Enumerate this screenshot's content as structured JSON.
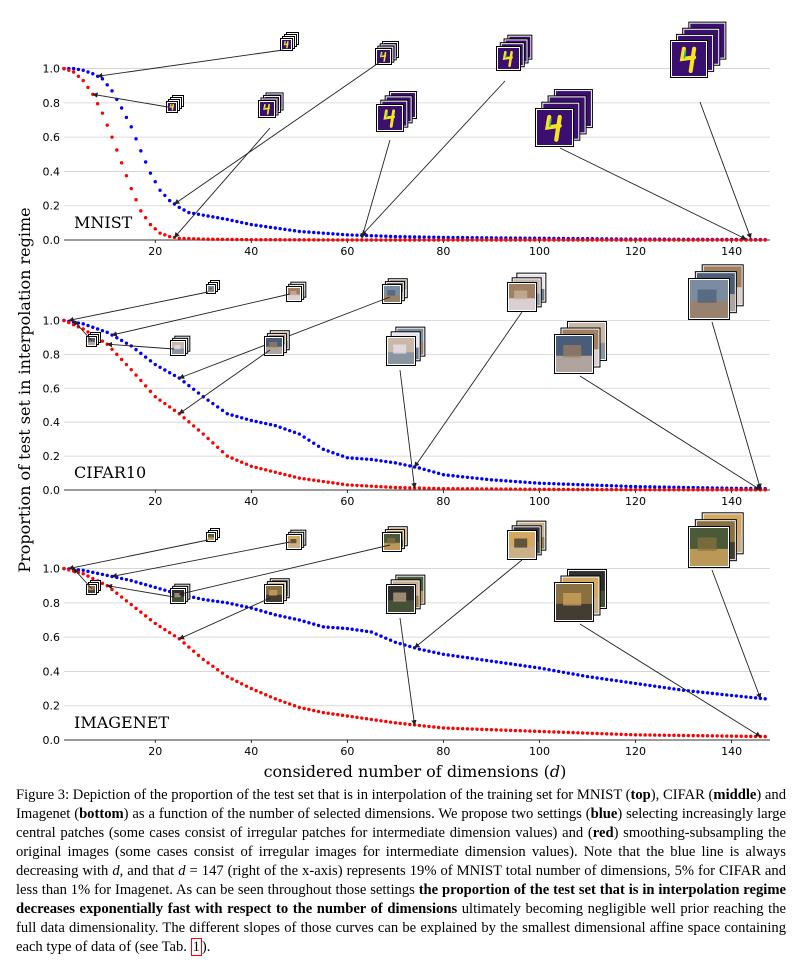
{
  "chart_data": [
    {
      "type": "scatter",
      "dataset": "MNIST",
      "xlim": [
        1,
        148
      ],
      "ylim": [
        0,
        1.05
      ],
      "xticks": [
        20,
        40,
        60,
        80,
        100,
        120,
        140
      ],
      "yticks": [
        0.0,
        0.2,
        0.4,
        0.6,
        0.8,
        1.0
      ],
      "yticklabels": [
        "0.0",
        "0.2",
        "0.4",
        "0.6",
        "0.8",
        "1.0"
      ],
      "grid": true,
      "series": [
        {
          "color": "#0000ff",
          "x": [
            1,
            3,
            5,
            7,
            9,
            11,
            13,
            15,
            17,
            19,
            21,
            23,
            25,
            27,
            29,
            31,
            35,
            40,
            50,
            60,
            70,
            80,
            100,
            120,
            140,
            147
          ],
          "y": [
            1.0,
            1.0,
            0.99,
            0.97,
            0.94,
            0.87,
            0.77,
            0.66,
            0.52,
            0.39,
            0.29,
            0.23,
            0.19,
            0.16,
            0.15,
            0.14,
            0.12,
            0.09,
            0.05,
            0.03,
            0.02,
            0.015,
            0.01,
            0.005,
            0.003,
            0.002
          ]
        },
        {
          "color": "#ff0000",
          "x": [
            1,
            3,
            5,
            7,
            9,
            11,
            13,
            15,
            17,
            19,
            21,
            23,
            25,
            30,
            40,
            60,
            80,
            100,
            147
          ],
          "y": [
            1.0,
            0.98,
            0.93,
            0.85,
            0.74,
            0.6,
            0.45,
            0.3,
            0.17,
            0.09,
            0.04,
            0.02,
            0.01,
            0.005,
            0.002,
            0.0,
            0.0,
            0.0,
            0.0
          ]
        }
      ]
    },
    {
      "type": "scatter",
      "dataset": "CIFAR10",
      "xlim": [
        1,
        148
      ],
      "ylim": [
        0,
        1.05
      ],
      "xticks": [
        20,
        40,
        60,
        80,
        100,
        120,
        140
      ],
      "yticks": [
        0.0,
        0.2,
        0.4,
        0.6,
        0.8,
        1.0
      ],
      "yticklabels": [
        "0.0",
        "0.2",
        "0.4",
        "0.6",
        "0.8",
        "1.0"
      ],
      "grid": true,
      "series": [
        {
          "color": "#0000ff",
          "x": [
            1,
            5,
            10,
            15,
            20,
            25,
            30,
            35,
            40,
            45,
            50,
            55,
            60,
            65,
            70,
            75,
            80,
            90,
            100,
            110,
            120,
            130,
            140,
            147
          ],
          "y": [
            1.0,
            0.98,
            0.93,
            0.85,
            0.74,
            0.66,
            0.55,
            0.45,
            0.41,
            0.38,
            0.33,
            0.24,
            0.19,
            0.18,
            0.16,
            0.13,
            0.09,
            0.06,
            0.04,
            0.03,
            0.02,
            0.015,
            0.01,
            0.008
          ]
        },
        {
          "color": "#ff0000",
          "x": [
            1,
            5,
            10,
            15,
            20,
            25,
            30,
            35,
            40,
            50,
            60,
            70,
            80,
            100,
            120,
            147
          ],
          "y": [
            1.0,
            0.95,
            0.86,
            0.71,
            0.55,
            0.45,
            0.33,
            0.2,
            0.14,
            0.07,
            0.03,
            0.015,
            0.008,
            0.004,
            0.002,
            0.001
          ]
        }
      ]
    },
    {
      "type": "scatter",
      "dataset": "IMAGENET",
      "xlim": [
        1,
        148
      ],
      "ylim": [
        0,
        1.05
      ],
      "xticks": [
        20,
        40,
        60,
        80,
        100,
        120,
        140
      ],
      "yticks": [
        0.0,
        0.2,
        0.4,
        0.6,
        0.8,
        1.0
      ],
      "yticklabels": [
        "0.0",
        "0.2",
        "0.4",
        "0.6",
        "0.8",
        "1.0"
      ],
      "grid": true,
      "series": [
        {
          "color": "#0000ff",
          "x": [
            1,
            5,
            10,
            15,
            20,
            25,
            30,
            35,
            40,
            45,
            50,
            55,
            60,
            65,
            70,
            75,
            80,
            90,
            100,
            110,
            120,
            130,
            140,
            147
          ],
          "y": [
            1.0,
            0.99,
            0.96,
            0.93,
            0.89,
            0.85,
            0.82,
            0.8,
            0.77,
            0.73,
            0.7,
            0.66,
            0.65,
            0.63,
            0.57,
            0.53,
            0.5,
            0.46,
            0.42,
            0.37,
            0.33,
            0.29,
            0.26,
            0.24
          ]
        },
        {
          "color": "#ff0000",
          "x": [
            1,
            5,
            10,
            15,
            20,
            25,
            30,
            35,
            40,
            45,
            50,
            55,
            60,
            70,
            80,
            100,
            120,
            147
          ],
          "y": [
            1.0,
            0.97,
            0.9,
            0.79,
            0.68,
            0.59,
            0.47,
            0.37,
            0.3,
            0.24,
            0.19,
            0.16,
            0.14,
            0.1,
            0.07,
            0.05,
            0.03,
            0.02
          ]
        }
      ]
    }
  ],
  "figure": {
    "ylabel": "Proportion of test set in interpolation regime",
    "xlabel": "considered number of dimensions (",
    "xlabel_var": "d",
    "xlabel_end": ")",
    "panel_labels": [
      "MNIST",
      "CIFAR10",
      "IMAGENET"
    ]
  },
  "thumbnail_colors": {
    "mnist_bg": "#3b0f6f",
    "mnist_fg": "#f6e620",
    "mnist_mid": "#2fb47c",
    "cifar": [
      "#7a8ca0",
      "#4a5d78",
      "#a08060",
      "#c9b8a8",
      "#e8e4ee"
    ],
    "imagenet": [
      "#4a5a38",
      "#8a7040",
      "#d4a860",
      "#303030",
      "#c8b090"
    ]
  },
  "caption": {
    "prefix": "Figure 3: Depiction of the proportion of the test set that is in interpolation of the training set for MNIST (",
    "top": "top",
    "s2": "), CIFAR (",
    "middle": "middle",
    "s3": ") and Imagenet (",
    "bottom": "bottom",
    "s4": ") as a function of the number of selected dimensions. We propose two settings (",
    "blue": "blue",
    "s5": ") selecting increasingly large central patches (some cases consist of irregular patches for intermediate dimension values) and (",
    "red": "red",
    "s6": ") smoothing-subsampling the original images (some cases consist of irregular images for intermediate dimension values). Note that the blue line is always decreasing with ",
    "d1": "d",
    "s7": ", and that ",
    "d2": "d",
    "s8": " = 147 (right of the x-axis) represents 19% of MNIST total number of dimensions, 5% for CIFAR and less than 1% for Imagenet. As can be seen throughout those settings ",
    "bold_claim": "the proportion of the test set that is in interpolation regime decreases exponentially fast with respect to the number of dimensions",
    "s9": " ultimately becoming negligible well prior reaching the full data dimensionality. The different slopes of those curves can be explained by the smallest dimensional affine space containing each type of data of (see Tab. ",
    "ref": "1",
    "s10": ")."
  }
}
